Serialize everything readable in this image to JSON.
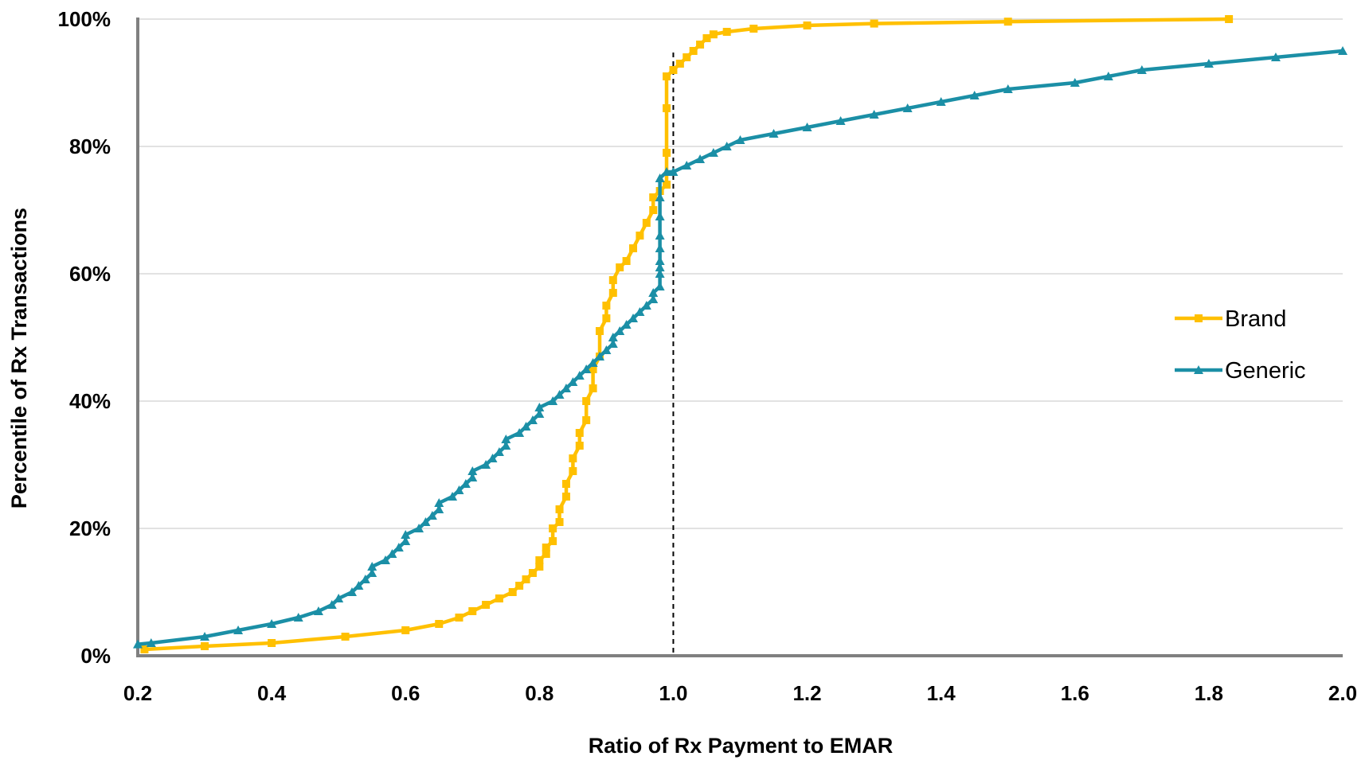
{
  "chart_data": {
    "type": "line",
    "xlabel": "Ratio of Rx Payment to EMAR",
    "ylabel": "Percentile of Rx Transactions",
    "xlim": [
      0.2,
      2.0
    ],
    "ylim": [
      0,
      100
    ],
    "x_ticks": [
      "0.2",
      "0.4",
      "0.6",
      "0.8",
      "1.0",
      "1.2",
      "1.4",
      "1.6",
      "1.8",
      "2.0"
    ],
    "y_ticks": [
      "0%",
      "20%",
      "40%",
      "60%",
      "80%",
      "100%"
    ],
    "grid": "horizontal",
    "reference_line": {
      "x": 1.0,
      "style": "dashed"
    },
    "legend_position": "right",
    "series": [
      {
        "name": "Brand",
        "color": "#FFC000",
        "marker": "square",
        "points": [
          [
            0.21,
            1
          ],
          [
            0.3,
            1.5
          ],
          [
            0.4,
            2
          ],
          [
            0.51,
            3
          ],
          [
            0.6,
            4
          ],
          [
            0.65,
            5
          ],
          [
            0.68,
            6
          ],
          [
            0.7,
            7
          ],
          [
            0.72,
            8
          ],
          [
            0.74,
            9
          ],
          [
            0.76,
            10
          ],
          [
            0.77,
            11
          ],
          [
            0.78,
            12
          ],
          [
            0.79,
            13
          ],
          [
            0.8,
            14
          ],
          [
            0.8,
            15
          ],
          [
            0.81,
            16
          ],
          [
            0.81,
            17
          ],
          [
            0.82,
            18
          ],
          [
            0.82,
            20
          ],
          [
            0.83,
            21
          ],
          [
            0.83,
            23
          ],
          [
            0.84,
            25
          ],
          [
            0.84,
            27
          ],
          [
            0.85,
            29
          ],
          [
            0.85,
            31
          ],
          [
            0.86,
            33
          ],
          [
            0.86,
            35
          ],
          [
            0.87,
            37
          ],
          [
            0.87,
            40
          ],
          [
            0.88,
            42
          ],
          [
            0.88,
            45
          ],
          [
            0.89,
            47
          ],
          [
            0.89,
            51
          ],
          [
            0.9,
            53
          ],
          [
            0.9,
            55
          ],
          [
            0.91,
            57
          ],
          [
            0.91,
            59
          ],
          [
            0.92,
            61
          ],
          [
            0.93,
            62
          ],
          [
            0.94,
            64
          ],
          [
            0.95,
            66
          ],
          [
            0.96,
            68
          ],
          [
            0.97,
            70
          ],
          [
            0.97,
            72
          ],
          [
            0.98,
            73
          ],
          [
            0.99,
            74
          ],
          [
            0.99,
            79
          ],
          [
            0.99,
            86
          ],
          [
            0.99,
            91
          ],
          [
            1.0,
            92
          ],
          [
            1.01,
            93
          ],
          [
            1.02,
            94
          ],
          [
            1.03,
            95
          ],
          [
            1.04,
            96
          ],
          [
            1.05,
            97
          ],
          [
            1.06,
            97.6
          ],
          [
            1.08,
            98
          ],
          [
            1.12,
            98.5
          ],
          [
            1.2,
            99
          ],
          [
            1.3,
            99.3
          ],
          [
            1.5,
            99.6
          ],
          [
            1.83,
            100
          ]
        ]
      },
      {
        "name": "Generic",
        "color": "#1B8FA6",
        "marker": "triangle",
        "points": [
          [
            0.2,
            1.8
          ],
          [
            0.22,
            2
          ],
          [
            0.3,
            3
          ],
          [
            0.35,
            4
          ],
          [
            0.4,
            5
          ],
          [
            0.44,
            6
          ],
          [
            0.47,
            7
          ],
          [
            0.49,
            8
          ],
          [
            0.5,
            9
          ],
          [
            0.52,
            10
          ],
          [
            0.53,
            11
          ],
          [
            0.54,
            12
          ],
          [
            0.55,
            13
          ],
          [
            0.55,
            14
          ],
          [
            0.57,
            15
          ],
          [
            0.58,
            16
          ],
          [
            0.59,
            17
          ],
          [
            0.6,
            18
          ],
          [
            0.6,
            19
          ],
          [
            0.62,
            20
          ],
          [
            0.63,
            21
          ],
          [
            0.64,
            22
          ],
          [
            0.65,
            23
          ],
          [
            0.65,
            24
          ],
          [
            0.67,
            25
          ],
          [
            0.68,
            26
          ],
          [
            0.69,
            27
          ],
          [
            0.7,
            28
          ],
          [
            0.7,
            29
          ],
          [
            0.72,
            30
          ],
          [
            0.73,
            31
          ],
          [
            0.74,
            32
          ],
          [
            0.75,
            33
          ],
          [
            0.75,
            34
          ],
          [
            0.77,
            35
          ],
          [
            0.78,
            36
          ],
          [
            0.79,
            37
          ],
          [
            0.8,
            38
          ],
          [
            0.8,
            39
          ],
          [
            0.82,
            40
          ],
          [
            0.83,
            41
          ],
          [
            0.84,
            42
          ],
          [
            0.85,
            43
          ],
          [
            0.86,
            44
          ],
          [
            0.87,
            45
          ],
          [
            0.88,
            46
          ],
          [
            0.89,
            47
          ],
          [
            0.9,
            48
          ],
          [
            0.91,
            49
          ],
          [
            0.91,
            50
          ],
          [
            0.92,
            51
          ],
          [
            0.93,
            52
          ],
          [
            0.94,
            53
          ],
          [
            0.95,
            54
          ],
          [
            0.96,
            55
          ],
          [
            0.97,
            56
          ],
          [
            0.97,
            57
          ],
          [
            0.98,
            58
          ],
          [
            0.98,
            60
          ],
          [
            0.98,
            61
          ],
          [
            0.98,
            62
          ],
          [
            0.98,
            64
          ],
          [
            0.98,
            66
          ],
          [
            0.98,
            69
          ],
          [
            0.98,
            72
          ],
          [
            0.98,
            75
          ],
          [
            0.99,
            76
          ],
          [
            1.0,
            76
          ],
          [
            1.02,
            77
          ],
          [
            1.04,
            78
          ],
          [
            1.06,
            79
          ],
          [
            1.08,
            80
          ],
          [
            1.1,
            81
          ],
          [
            1.15,
            82
          ],
          [
            1.2,
            83
          ],
          [
            1.25,
            84
          ],
          [
            1.3,
            85
          ],
          [
            1.35,
            86
          ],
          [
            1.4,
            87
          ],
          [
            1.45,
            88
          ],
          [
            1.5,
            89
          ],
          [
            1.6,
            90
          ],
          [
            1.65,
            91
          ],
          [
            1.7,
            92
          ],
          [
            1.8,
            93
          ],
          [
            1.9,
            94
          ],
          [
            2.0,
            95
          ]
        ]
      }
    ]
  }
}
